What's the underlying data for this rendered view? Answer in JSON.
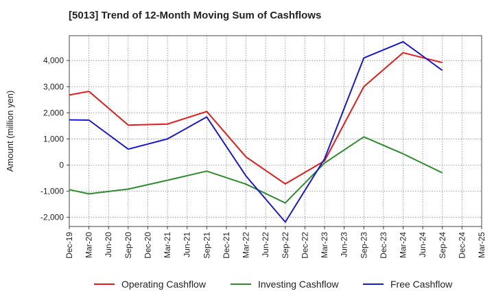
{
  "chart_data": {
    "type": "line",
    "title": "[5013]  Trend of 12-Month Moving Sum of Cashflows",
    "ylabel": "Amount (million yen)",
    "xlabel": "",
    "ylim": [
      -2350,
      4950
    ],
    "yticks": [
      -2000,
      -1000,
      0,
      1000,
      2000,
      3000,
      4000
    ],
    "ytick_labels": [
      "-2,000",
      "-1,000",
      "0",
      "1,000",
      "2,000",
      "3,000",
      "4,000"
    ],
    "categories": [
      "Dec-19",
      "Mar-20",
      "Jun-20",
      "Sep-20",
      "Dec-20",
      "Mar-21",
      "Jun-21",
      "Sep-21",
      "Dec-21",
      "Mar-22",
      "Jun-22",
      "Sep-22",
      "Dec-22",
      "Mar-23",
      "Jun-23",
      "Sep-23",
      "Dec-23",
      "Mar-24",
      "Jun-24",
      "Sep-24",
      "Dec-24",
      "Mar-25"
    ],
    "grid": true,
    "legend_position": "bottom",
    "series": [
      {
        "name": "Operating Cashflow",
        "color": "#e8191a",
        "values": [
          2680,
          2820,
          null,
          1530,
          null,
          1570,
          null,
          2050,
          null,
          310,
          null,
          -720,
          null,
          160,
          null,
          3000,
          null,
          4300,
          null,
          3920,
          null,
          null
        ]
      },
      {
        "name": "Investing Cashflow",
        "color": "#2e8b2e",
        "values": [
          -940,
          -1100,
          null,
          -920,
          null,
          -580,
          null,
          -230,
          null,
          -730,
          null,
          -1450,
          null,
          80,
          null,
          1080,
          null,
          430,
          null,
          -300,
          null,
          null
        ]
      },
      {
        "name": "Free Cashflow",
        "color": "#1717d6",
        "values": [
          1730,
          1720,
          null,
          610,
          null,
          1000,
          null,
          1840,
          null,
          -420,
          null,
          -2180,
          null,
          240,
          null,
          4100,
          null,
          4720,
          null,
          3620,
          null,
          null
        ]
      }
    ]
  }
}
